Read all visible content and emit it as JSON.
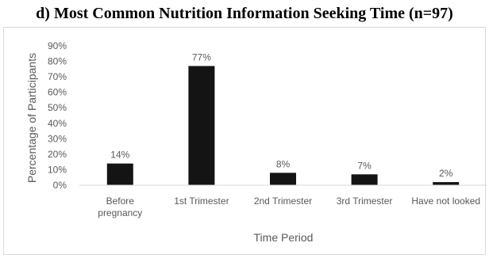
{
  "chart_data": {
    "type": "bar",
    "title": "d)  Most Common Nutrition Information Seeking Time (n=97)",
    "xlabel": "Time Period",
    "ylabel": "Percentage of Participants",
    "categories": [
      [
        "Before",
        "pregnancy"
      ],
      [
        "1st Trimester"
      ],
      [
        "2nd Trimester"
      ],
      [
        "3rd Trimester"
      ],
      [
        "Have not looked"
      ]
    ],
    "values": [
      14,
      77,
      8,
      7,
      2
    ],
    "data_labels": [
      "14%",
      "77%",
      "8%",
      "7%",
      "2%"
    ],
    "ylim": [
      0,
      90
    ],
    "yticks": [
      "0%",
      "10%",
      "20%",
      "30%",
      "40%",
      "50%",
      "60%",
      "70%",
      "80%",
      "90%"
    ],
    "bar_color": "#141414",
    "axis_color": "#d9d9d9"
  }
}
